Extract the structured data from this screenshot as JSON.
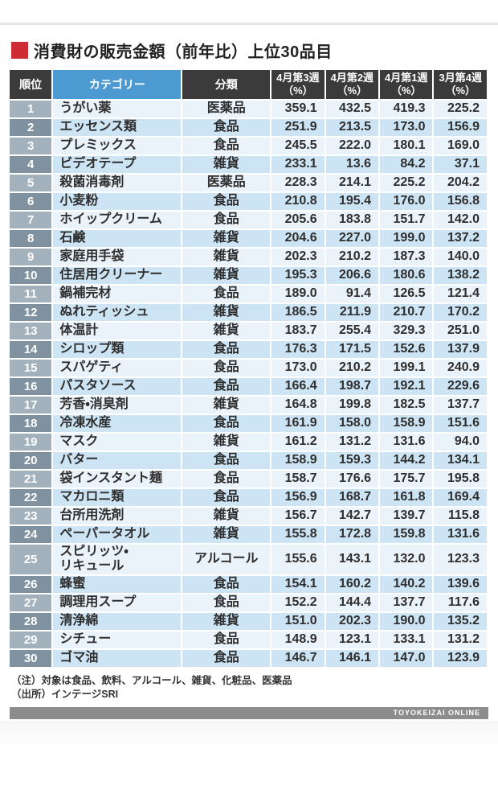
{
  "header": {
    "title": "消費財の販売金額（前年比）上位30品目"
  },
  "notes": {
    "line1": "（注）対象は食品、飲料、アルコール、雑貨、化粧品、医薬品",
    "line2": "（出所）インテージSRI"
  },
  "footer": {
    "brand": "TOYOKEIZAI ONLINE"
  },
  "colors": {
    "accent_red": "#cd2c34",
    "header_bg": "#3b3b3b",
    "header_blue": "#4d99d2",
    "rank_light": "#a3b1bc",
    "rank_dark": "#80929f",
    "row_light": "#eaf3fa",
    "row_blue": "#cde4f4",
    "footer_bar": "#8c8c8c"
  },
  "chart_data": {
    "type": "table",
    "title": "消費財の販売金額（前年比）上位30品目",
    "columns": [
      {
        "label": "順位"
      },
      {
        "label": "カテゴリー"
      },
      {
        "label": "分類"
      },
      {
        "label": "4月第3週",
        "sub": "（%）"
      },
      {
        "label": "4月第2週",
        "sub": "（%）"
      },
      {
        "label": "4月第1週",
        "sub": "（%）"
      },
      {
        "label": "3月第4週",
        "sub": "（%）"
      }
    ],
    "rows": [
      [
        1,
        "うがい薬",
        "医薬品",
        359.1,
        432.5,
        419.3,
        225.2
      ],
      [
        2,
        "エッセンス類",
        "食品",
        251.9,
        213.5,
        173.0,
        156.9
      ],
      [
        3,
        "プレミックス",
        "食品",
        245.5,
        222.0,
        180.1,
        169.0
      ],
      [
        4,
        "ビデオテープ",
        "雑貨",
        233.1,
        13.6,
        84.2,
        37.1
      ],
      [
        5,
        "殺菌消毒剤",
        "医薬品",
        228.3,
        214.1,
        225.2,
        204.2
      ],
      [
        6,
        "小麦粉",
        "食品",
        210.8,
        195.4,
        176.0,
        156.8
      ],
      [
        7,
        "ホイップクリーム",
        "食品",
        205.6,
        183.8,
        151.7,
        142.0
      ],
      [
        8,
        "石鹸",
        "雑貨",
        204.6,
        227.0,
        199.0,
        137.2
      ],
      [
        9,
        "家庭用手袋",
        "雑貨",
        202.3,
        210.2,
        187.3,
        140.0
      ],
      [
        10,
        "住居用クリーナー",
        "雑貨",
        195.3,
        206.6,
        180.6,
        138.2
      ],
      [
        11,
        "鍋補完材",
        "食品",
        189.0,
        91.4,
        126.5,
        121.4
      ],
      [
        12,
        "ぬれティッシュ",
        "雑貨",
        186.5,
        211.9,
        210.7,
        170.2
      ],
      [
        13,
        "体温計",
        "雑貨",
        183.7,
        255.4,
        329.3,
        251.0
      ],
      [
        14,
        "シロップ類",
        "食品",
        176.3,
        171.5,
        152.6,
        137.9
      ],
      [
        15,
        "スパゲティ",
        "食品",
        173.0,
        210.2,
        199.1,
        240.9
      ],
      [
        16,
        "パスタソース",
        "食品",
        166.4,
        198.7,
        192.1,
        229.6
      ],
      [
        17,
        "芳香・消臭剤",
        "雑貨",
        164.8,
        199.8,
        182.5,
        137.7
      ],
      [
        18,
        "冷凍水産",
        "食品",
        161.9,
        158.0,
        158.9,
        151.6
      ],
      [
        19,
        "マスク",
        "雑貨",
        161.2,
        131.2,
        131.6,
        94.0
      ],
      [
        20,
        "バター",
        "食品",
        158.9,
        159.3,
        144.2,
        134.1
      ],
      [
        21,
        "袋インスタント麺",
        "食品",
        158.7,
        176.6,
        175.7,
        195.8
      ],
      [
        22,
        "マカロニ類",
        "食品",
        156.9,
        168.7,
        161.8,
        169.4
      ],
      [
        23,
        "台所用洗剤",
        "雑貨",
        156.7,
        142.7,
        139.7,
        115.8
      ],
      [
        24,
        "ペーパータオル",
        "雑貨",
        155.8,
        172.8,
        159.8,
        131.6
      ],
      [
        25,
        "スピリッツ・\nリキュール",
        "アルコール",
        155.6,
        143.1,
        132.0,
        123.3
      ],
      [
        26,
        "蜂蜜",
        "食品",
        154.1,
        160.2,
        140.2,
        139.6
      ],
      [
        27,
        "調理用スープ",
        "食品",
        152.2,
        144.4,
        137.7,
        117.6
      ],
      [
        28,
        "清浄綿",
        "雑貨",
        151.0,
        202.3,
        190.0,
        135.2
      ],
      [
        29,
        "シチュー",
        "食品",
        148.9,
        123.1,
        133.1,
        131.2
      ],
      [
        30,
        "ゴマ油",
        "食品",
        146.7,
        146.1,
        147.0,
        123.9
      ]
    ]
  }
}
